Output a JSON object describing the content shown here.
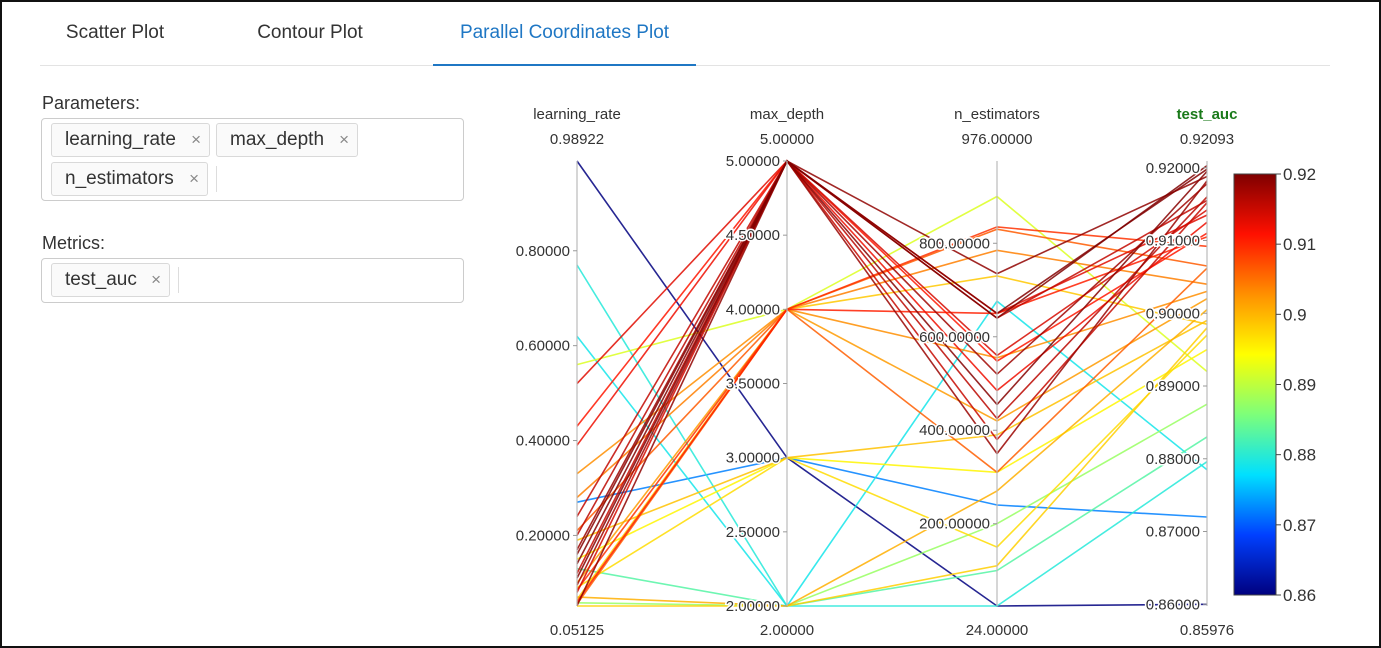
{
  "tabs": [
    {
      "label": "Scatter Plot",
      "active": false
    },
    {
      "label": "Contour Plot",
      "active": false
    },
    {
      "label": "Parallel Coordinates Plot",
      "active": true
    }
  ],
  "parameters": {
    "label": "Parameters:",
    "chips": [
      "learning_rate",
      "max_depth",
      "n_estimators"
    ]
  },
  "metrics": {
    "label": "Metrics:",
    "chips": [
      "test_auc"
    ]
  },
  "remove_symbol": "×",
  "colors": {
    "accent": "#1f77c4",
    "metric_title": "#1a7a1a"
  },
  "chart_data": {
    "type": "parallel_coordinates",
    "axes": [
      {
        "name": "learning_rate",
        "min": 0.05125,
        "max": 0.98922,
        "min_label": "0.05125",
        "max_label": "0.98922",
        "ticks": [
          0.2,
          0.4,
          0.6,
          0.8
        ],
        "tick_labels": [
          "0.20000",
          "0.40000",
          "0.60000",
          "0.80000"
        ],
        "highlight": false
      },
      {
        "name": "max_depth",
        "min": 2,
        "max": 5,
        "min_label": "2.00000",
        "max_label": "5.00000",
        "ticks": [
          2,
          2.5,
          3,
          3.5,
          4,
          4.5,
          5
        ],
        "tick_labels": [
          "2.00000",
          "2.50000",
          "3.00000",
          "3.50000",
          "4.00000",
          "4.50000",
          "5.00000"
        ],
        "highlight": false
      },
      {
        "name": "n_estimators",
        "min": 24,
        "max": 976,
        "min_label": "24.00000",
        "max_label": "976.00000",
        "ticks": [
          200,
          400,
          600,
          800
        ],
        "tick_labels": [
          "200.00000",
          "400.00000",
          "600.00000",
          "800.00000"
        ],
        "highlight": false
      },
      {
        "name": "test_auc",
        "min": 0.85976,
        "max": 0.92093,
        "min_label": "0.85976",
        "max_label": "0.92093",
        "ticks": [
          0.86,
          0.87,
          0.88,
          0.89,
          0.9,
          0.91,
          0.92
        ],
        "tick_labels": [
          "0.86000",
          "0.87000",
          "0.88000",
          "0.89000",
          "0.90000",
          "0.91000",
          "0.92000"
        ],
        "highlight": true
      }
    ],
    "colorscale": {
      "min": 0.86,
      "max": 0.92,
      "ticks": [
        0.86,
        0.87,
        0.88,
        0.89,
        0.9,
        0.91,
        0.92
      ],
      "tick_labels": [
        "0.86",
        "0.87",
        "0.88",
        "0.89",
        "0.9",
        "0.91",
        "0.92"
      ],
      "stops": [
        "#00007f",
        "#0040ff",
        "#00e0ff",
        "#7dff7a",
        "#ffff00",
        "#ff9000",
        "#ff1000",
        "#7f0000"
      ]
    },
    "lines": [
      [
        0.98922,
        3,
        24,
        0.86
      ],
      [
        0.77,
        2,
        24,
        0.8796
      ],
      [
        0.62,
        2,
        676,
        0.8785
      ],
      [
        0.56,
        4,
        900,
        0.892
      ],
      [
        0.52,
        5,
        650,
        0.9135
      ],
      [
        0.43,
        5,
        548,
        0.911
      ],
      [
        0.39,
        5,
        485,
        0.9125
      ],
      [
        0.33,
        4,
        555,
        0.903
      ],
      [
        0.28,
        4,
        785,
        0.904
      ],
      [
        0.27,
        3,
        240,
        0.872
      ],
      [
        0.24,
        5,
        640,
        0.9155
      ],
      [
        0.21,
        4,
        830,
        0.9065
      ],
      [
        0.2,
        5,
        425,
        0.916
      ],
      [
        0.19,
        3,
        390,
        0.899
      ],
      [
        0.17,
        5,
        350,
        0.9182
      ],
      [
        0.16,
        5,
        455,
        0.9195
      ],
      [
        0.15,
        3,
        310,
        0.895
      ],
      [
        0.14,
        5,
        640,
        0.9203
      ],
      [
        0.13,
        2,
        100,
        0.883
      ],
      [
        0.12,
        5,
        380,
        0.9152
      ],
      [
        0.11,
        5,
        650,
        0.9198
      ],
      [
        0.1,
        4,
        420,
        0.902
      ],
      [
        0.095,
        5,
        520,
        0.9178
      ],
      [
        0.09,
        3,
        150,
        0.897
      ],
      [
        0.085,
        4,
        835,
        0.9092
      ],
      [
        0.08,
        5,
        560,
        0.9142
      ],
      [
        0.07,
        2,
        270,
        0.9005
      ],
      [
        0.065,
        4,
        730,
        0.8985
      ],
      [
        0.06,
        4,
        650,
        0.9105
      ],
      [
        0.058,
        2,
        200,
        0.8875
      ],
      [
        0.055,
        4,
        310,
        0.9062
      ],
      [
        0.052,
        5,
        735,
        0.9188
      ],
      [
        0.05125,
        2,
        110,
        0.898
      ]
    ]
  }
}
